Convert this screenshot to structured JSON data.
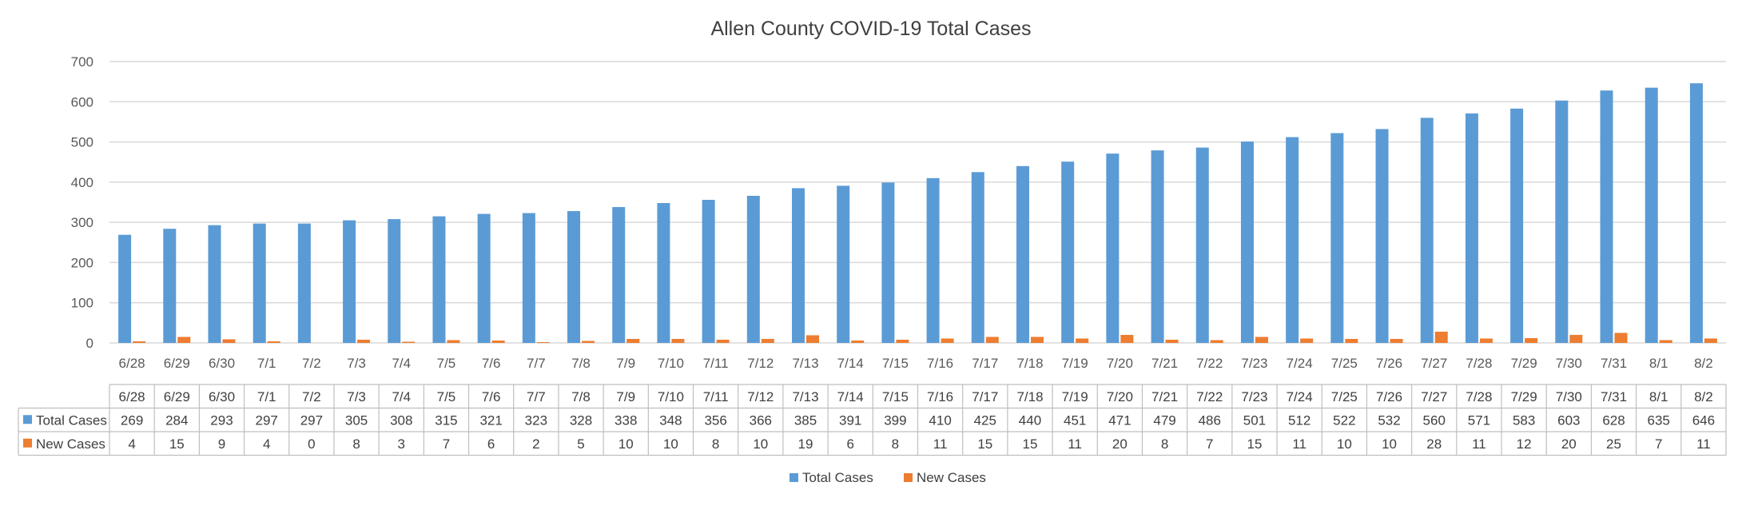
{
  "chart_data": {
    "type": "bar",
    "title": "Allen County COVID-19 Total Cases",
    "xlabel": "",
    "ylabel": "",
    "ylim": [
      0,
      700
    ],
    "yticks": [
      0,
      100,
      200,
      300,
      400,
      500,
      600,
      700
    ],
    "grid": true,
    "legend_position": "bottom",
    "data_table": true,
    "categories": [
      "6/28",
      "6/29",
      "6/30",
      "7/1",
      "7/2",
      "7/3",
      "7/4",
      "7/5",
      "7/6",
      "7/7",
      "7/8",
      "7/9",
      "7/10",
      "7/11",
      "7/12",
      "7/13",
      "7/14",
      "7/15",
      "7/16",
      "7/17",
      "7/18",
      "7/19",
      "7/20",
      "7/21",
      "7/22",
      "7/23",
      "7/24",
      "7/25",
      "7/26",
      "7/27",
      "7/28",
      "7/29",
      "7/30",
      "7/31",
      "8/1",
      "8/2"
    ],
    "series": [
      {
        "name": "Total Cases",
        "color": "#5B9BD5",
        "values": [
          269,
          284,
          293,
          297,
          297,
          305,
          308,
          315,
          321,
          323,
          328,
          338,
          348,
          356,
          366,
          385,
          391,
          399,
          410,
          425,
          440,
          451,
          471,
          479,
          486,
          501,
          512,
          522,
          532,
          560,
          571,
          583,
          603,
          628,
          635,
          646
        ]
      },
      {
        "name": "New Cases",
        "color": "#ED7D31",
        "values": [
          4,
          15,
          9,
          4,
          0,
          8,
          3,
          7,
          6,
          2,
          5,
          10,
          10,
          8,
          10,
          19,
          6,
          8,
          11,
          15,
          15,
          11,
          20,
          8,
          7,
          15,
          11,
          10,
          10,
          28,
          11,
          12,
          20,
          25,
          7,
          11
        ]
      }
    ]
  },
  "colors": {
    "gridline": "#D9D9D9",
    "table_border": "#BFBFBF"
  }
}
